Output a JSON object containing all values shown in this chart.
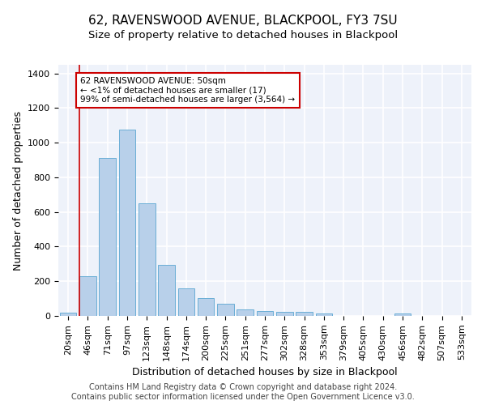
{
  "title": "62, RAVENSWOOD AVENUE, BLACKPOOL, FY3 7SU",
  "subtitle": "Size of property relative to detached houses in Blackpool",
  "xlabel": "Distribution of detached houses by size in Blackpool",
  "ylabel": "Number of detached properties",
  "categories": [
    "20sqm",
    "46sqm",
    "71sqm",
    "97sqm",
    "123sqm",
    "148sqm",
    "174sqm",
    "200sqm",
    "225sqm",
    "251sqm",
    "277sqm",
    "302sqm",
    "328sqm",
    "353sqm",
    "379sqm",
    "405sqm",
    "430sqm",
    "456sqm",
    "482sqm",
    "507sqm",
    "533sqm"
  ],
  "values": [
    17,
    228,
    910,
    1075,
    650,
    295,
    160,
    105,
    70,
    38,
    28,
    25,
    22,
    15,
    0,
    0,
    0,
    12,
    0,
    0,
    0
  ],
  "bar_color": "#b8d0ea",
  "bar_edge_color": "#6aaed6",
  "annotation_title": "62 RAVENSWOOD AVENUE: 50sqm",
  "annotation_line1": "← <1% of detached houses are smaller (17)",
  "annotation_line2": "99% of semi-detached houses are larger (3,564) →",
  "annotation_box_color": "#ffffff",
  "annotation_box_edge": "#cc0000",
  "red_line_color": "#cc0000",
  "background_color": "#eef2fa",
  "grid_color": "#ffffff",
  "ylim": [
    0,
    1450
  ],
  "yticks": [
    0,
    200,
    400,
    600,
    800,
    1000,
    1200,
    1400
  ],
  "footer_line1": "Contains HM Land Registry data © Crown copyright and database right 2024.",
  "footer_line2": "Contains public sector information licensed under the Open Government Licence v3.0.",
  "title_fontsize": 11,
  "subtitle_fontsize": 9.5,
  "xlabel_fontsize": 9,
  "ylabel_fontsize": 9,
  "tick_fontsize": 8,
  "footer_fontsize": 7
}
